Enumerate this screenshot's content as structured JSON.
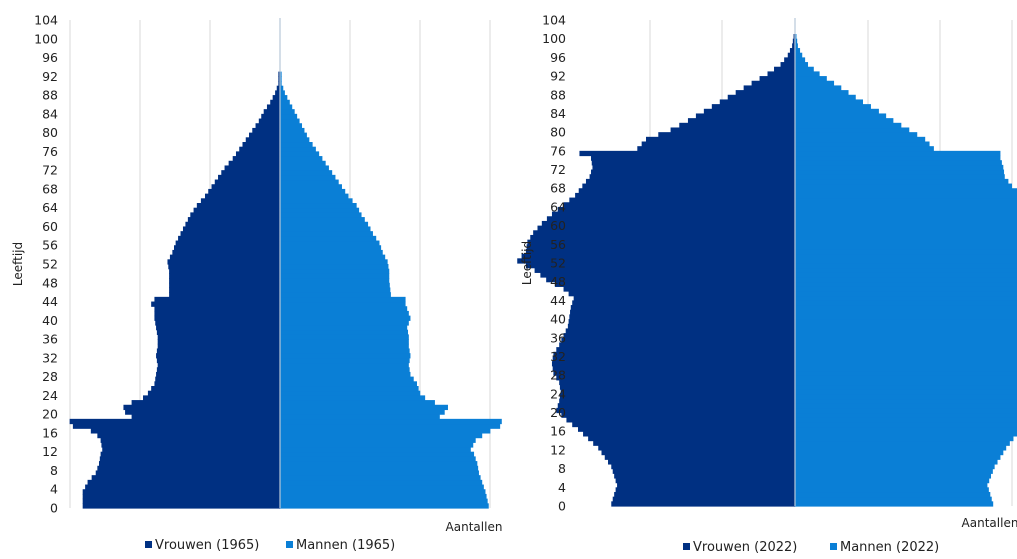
{
  "colors": {
    "vrouwen": "#003082",
    "mannen": "#0a7fd6",
    "grid": "#d9d9d9",
    "center_line": "#b8c8d8"
  },
  "chart_data": [
    {
      "type": "bar",
      "orientation": "horizontal-population-pyramid",
      "ylabel": "Leeftijd",
      "xlabel": "Aantallen",
      "y_ticks": [
        0,
        4,
        8,
        12,
        16,
        20,
        24,
        28,
        32,
        36,
        40,
        44,
        48,
        52,
        56,
        60,
        64,
        68,
        72,
        76,
        80,
        84,
        88,
        92,
        96,
        100,
        104
      ],
      "ylim": [
        0,
        104
      ],
      "xlim": [
        -130,
        130
      ],
      "grid": true,
      "legend_position": "bottom",
      "series": [
        {
          "name": "Vrouwen (1965)",
          "key_points": [
            [
              0,
              -121
            ],
            [
              3,
              -121
            ],
            [
              5,
              -118
            ],
            [
              7,
              -113
            ],
            [
              9,
              -111
            ],
            [
              11,
              -110
            ],
            [
              12,
              -109
            ],
            [
              14,
              -110
            ],
            [
              15,
              -112
            ],
            [
              16,
              -116
            ],
            [
              17,
              -127
            ],
            [
              18,
              -129
            ],
            [
              19,
              -91
            ],
            [
              20,
              -95
            ],
            [
              21,
              -96
            ],
            [
              22,
              -91
            ],
            [
              23,
              -84
            ],
            [
              24,
              -81
            ],
            [
              26,
              -77
            ],
            [
              28,
              -76
            ],
            [
              30,
              -75
            ],
            [
              32,
              -76
            ],
            [
              34,
              -75
            ],
            [
              36,
              -75
            ],
            [
              38,
              -76
            ],
            [
              40,
              -77
            ],
            [
              42,
              -77
            ],
            [
              43,
              -79
            ],
            [
              44,
              -77
            ],
            [
              45,
              -68
            ],
            [
              48,
              -68
            ],
            [
              50,
              -68
            ],
            [
              52,
              -69
            ],
            [
              54,
              -66
            ],
            [
              56,
              -64
            ],
            [
              58,
              -61
            ],
            [
              60,
              -58
            ],
            [
              62,
              -55
            ],
            [
              64,
              -51
            ],
            [
              66,
              -46
            ],
            [
              68,
              -42
            ],
            [
              70,
              -38
            ],
            [
              72,
              -34
            ],
            [
              74,
              -29
            ],
            [
              76,
              -25
            ],
            [
              78,
              -21
            ],
            [
              80,
              -17
            ],
            [
              82,
              -13
            ],
            [
              84,
              -10
            ],
            [
              86,
              -6
            ],
            [
              88,
              -3
            ],
            [
              90,
              -1
            ],
            [
              92,
              -1
            ],
            [
              93,
              0
            ]
          ]
        },
        {
          "name": "Mannen (1965)",
          "key_points": [
            [
              0,
              128
            ],
            [
              3,
              126
            ],
            [
              5,
              124
            ],
            [
              7,
              122
            ],
            [
              9,
              121
            ],
            [
              11,
              119
            ],
            [
              12,
              117
            ],
            [
              14,
              120
            ],
            [
              15,
              124
            ],
            [
              16,
              129
            ],
            [
              17,
              135
            ],
            [
              18,
              136
            ],
            [
              19,
              98
            ],
            [
              20,
              101
            ],
            [
              21,
              103
            ],
            [
              22,
              95
            ],
            [
              23,
              89
            ],
            [
              24,
              86
            ],
            [
              26,
              84
            ],
            [
              28,
              80
            ],
            [
              30,
              79
            ],
            [
              32,
              80
            ],
            [
              34,
              79
            ],
            [
              36,
              79
            ],
            [
              38,
              78
            ],
            [
              40,
              80
            ],
            [
              42,
              78
            ],
            [
              43,
              77
            ],
            [
              44,
              77
            ],
            [
              45,
              68
            ],
            [
              48,
              67
            ],
            [
              50,
              67
            ],
            [
              52,
              66
            ],
            [
              54,
              63
            ],
            [
              56,
              61
            ],
            [
              58,
              57
            ],
            [
              60,
              54
            ],
            [
              62,
              50
            ],
            [
              64,
              47
            ],
            [
              66,
              42
            ],
            [
              68,
              38
            ],
            [
              70,
              34
            ],
            [
              72,
              30
            ],
            [
              74,
              26
            ],
            [
              76,
              22
            ],
            [
              78,
              18
            ],
            [
              80,
              15
            ],
            [
              82,
              12
            ],
            [
              84,
              9
            ],
            [
              86,
              6
            ],
            [
              88,
              3
            ],
            [
              90,
              1
            ],
            [
              92,
              1
            ],
            [
              93,
              0
            ]
          ]
        }
      ]
    },
    {
      "type": "bar",
      "orientation": "horizontal-population-pyramid",
      "ylabel": "Leeftijd",
      "xlabel": "Aantallen",
      "y_ticks": [
        0,
        4,
        8,
        12,
        16,
        20,
        24,
        28,
        32,
        36,
        40,
        44,
        48,
        52,
        56,
        60,
        64,
        68,
        72,
        76,
        80,
        84,
        88,
        92,
        96,
        100,
        104
      ],
      "ylim": [
        0,
        104
      ],
      "xlim": [
        -150,
        150
      ],
      "grid": true,
      "legend_position": "bottom",
      "series": [
        {
          "name": "Vrouwen (2022)",
          "key_points": [
            [
              0,
              -127
            ],
            [
              4,
              -123
            ],
            [
              8,
              -127
            ],
            [
              12,
              -136
            ],
            [
              16,
              -150
            ],
            [
              18,
              -158
            ],
            [
              20,
              -165
            ],
            [
              22,
              -163
            ],
            [
              24,
              -162
            ],
            [
              26,
              -163
            ],
            [
              28,
              -167
            ],
            [
              30,
              -168
            ],
            [
              32,
              -167
            ],
            [
              34,
              -163
            ],
            [
              36,
              -160
            ],
            [
              38,
              -157
            ],
            [
              40,
              -156
            ],
            [
              42,
              -155
            ],
            [
              44,
              -153
            ],
            [
              46,
              -160
            ],
            [
              48,
              -172
            ],
            [
              50,
              -180
            ],
            [
              52,
              -192
            ],
            [
              54,
              -186
            ],
            [
              56,
              -185
            ],
            [
              58,
              -181
            ],
            [
              60,
              -175
            ],
            [
              62,
              -168
            ],
            [
              64,
              -160
            ],
            [
              66,
              -152
            ],
            [
              68,
              -147
            ],
            [
              70,
              -142
            ],
            [
              72,
              -140
            ],
            [
              74,
              -141
            ],
            [
              75,
              -149
            ],
            [
              76,
              -109
            ],
            [
              78,
              -103
            ],
            [
              80,
              -86
            ],
            [
              82,
              -74
            ],
            [
              84,
              -63
            ],
            [
              86,
              -52
            ],
            [
              88,
              -41
            ],
            [
              90,
              -30
            ],
            [
              92,
              -19
            ],
            [
              94,
              -10
            ],
            [
              96,
              -5
            ],
            [
              98,
              -2
            ],
            [
              100,
              -1
            ],
            [
              101,
              0
            ]
          ]
        },
        {
          "name": "Mannen (2022)",
          "key_points": [
            [
              0,
              137
            ],
            [
              4,
              133
            ],
            [
              8,
              138
            ],
            [
              12,
              146
            ],
            [
              16,
              156
            ],
            [
              18,
              165
            ],
            [
              20,
              173
            ],
            [
              22,
              171
            ],
            [
              24,
              168
            ],
            [
              26,
              170
            ],
            [
              28,
              177
            ],
            [
              30,
              176
            ],
            [
              32,
              174
            ],
            [
              34,
              170
            ],
            [
              36,
              167
            ],
            [
              38,
              162
            ],
            [
              40,
              160
            ],
            [
              42,
              158
            ],
            [
              44,
              155
            ],
            [
              46,
              160
            ],
            [
              48,
              170
            ],
            [
              50,
              182
            ],
            [
              52,
              198
            ],
            [
              54,
              191
            ],
            [
              56,
              190
            ],
            [
              58,
              186
            ],
            [
              60,
              181
            ],
            [
              62,
              173
            ],
            [
              64,
              165
            ],
            [
              66,
              157
            ],
            [
              68,
              150
            ],
            [
              70,
              145
            ],
            [
              72,
              144
            ],
            [
              74,
              142
            ],
            [
              75,
              142
            ],
            [
              76,
              96
            ],
            [
              78,
              90
            ],
            [
              80,
              79
            ],
            [
              82,
              68
            ],
            [
              84,
              58
            ],
            [
              86,
              47
            ],
            [
              88,
              37
            ],
            [
              90,
              27
            ],
            [
              92,
              17
            ],
            [
              94,
              9
            ],
            [
              96,
              5
            ],
            [
              98,
              2
            ],
            [
              100,
              1
            ],
            [
              101,
              0
            ]
          ]
        }
      ]
    }
  ]
}
